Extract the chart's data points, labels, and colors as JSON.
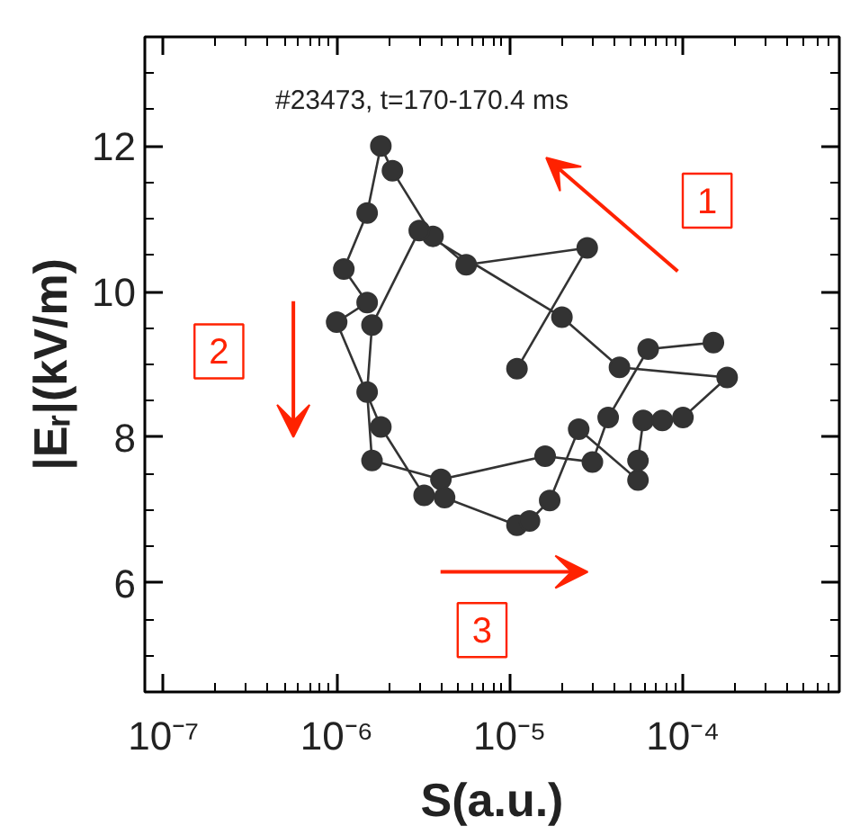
{
  "chart_data": {
    "type": "line",
    "title": "#23473, t=170-170.4 ms",
    "xlabel": "S(a.u.)",
    "ylabel": "|Eᵣ|(kV/m)",
    "log": "x",
    "marker": "circle",
    "line_style": "solid",
    "grid": false,
    "xlim": [
      7.8e-08,
      0.0008
    ],
    "ylim": [
      4.5,
      13.5
    ],
    "xticks": [
      {
        "value": 1e-07,
        "label": "10⁻⁷"
      },
      {
        "value": 1e-06,
        "label": "10⁻⁶"
      },
      {
        "value": 1e-05,
        "label": "10⁻⁵"
      },
      {
        "value": 0.0001,
        "label": "10⁻⁴"
      }
    ],
    "yticks": [
      6,
      8,
      10,
      12
    ],
    "series": [
      {
        "color": "#333333",
        "x": [
          1.1e-05,
          2.8e-05,
          5.6e-06,
          3.6e-06,
          2.1e-06,
          1.8e-06,
          1.5e-06,
          1.1e-06,
          1.5e-06,
          1e-06,
          1.8e-06,
          3.2e-06,
          4.2e-06,
          1.1e-05,
          1.3e-05,
          1.7e-05,
          2.5e-05,
          5.5e-05,
          5.5e-05,
          5.9e-05,
          7.6e-05,
          0.0001,
          0.00018,
          4.3e-05,
          2e-05,
          3e-06,
          1.6e-06,
          1.5e-06,
          1.6e-06,
          4e-06,
          1.6e-05,
          3e-05,
          3.7e-05,
          6.3e-05,
          0.00015
        ],
        "values": [
          8.94,
          10.6,
          10.37,
          10.76,
          11.66,
          12.0,
          11.08,
          10.31,
          9.85,
          9.58,
          8.14,
          7.2,
          7.17,
          6.79,
          6.85,
          7.13,
          8.11,
          7.41,
          7.68,
          8.23,
          8.23,
          8.27,
          8.82,
          8.96,
          9.65,
          10.84,
          9.54,
          8.62,
          7.68,
          7.42,
          7.74,
          7.66,
          8.27,
          9.21,
          9.3
        ]
      }
    ],
    "annotations": [
      {
        "text": "1"
      },
      {
        "text": "2"
      },
      {
        "text": "3"
      }
    ]
  }
}
